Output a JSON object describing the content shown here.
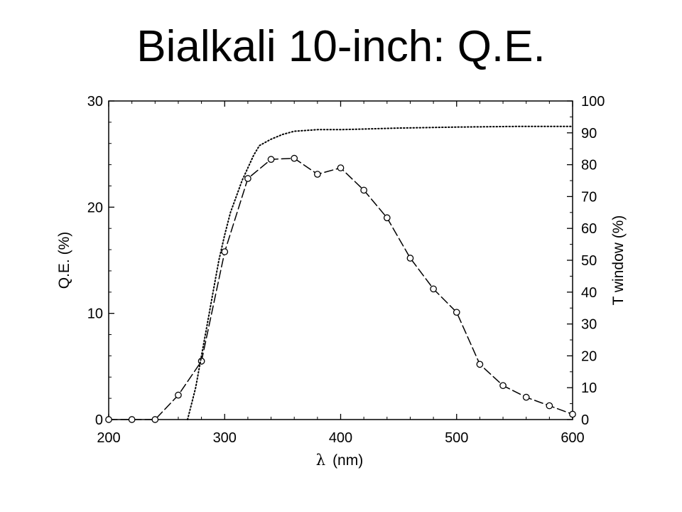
{
  "page": {
    "title": "Bialkali 10-inch: Q.E."
  },
  "chart_data": {
    "type": "line",
    "title": "Bialkali 10-inch: Q.E.",
    "xlabel_symbol": "λ",
    "xlabel_unit": "(nm)",
    "ylabel": "Q.E. (%)",
    "y2label": "T window (%)",
    "xlim": [
      200,
      600
    ],
    "ylim": [
      0,
      30
    ],
    "y2lim": [
      0,
      100
    ],
    "xticks": [
      200,
      300,
      400,
      500,
      600
    ],
    "yticks": [
      0,
      10,
      20,
      30
    ],
    "y2ticks": [
      0,
      10,
      20,
      30,
      40,
      50,
      60,
      70,
      80,
      90,
      100
    ],
    "grid": false,
    "series": [
      {
        "axis": "left",
        "line": "dashed",
        "marker": "open-circle",
        "x": [
          200,
          220,
          240,
          260,
          280,
          300,
          320,
          340,
          360,
          380,
          400,
          420,
          440,
          460,
          480,
          500,
          520,
          540,
          560,
          580,
          600
        ],
        "y": [
          0,
          0,
          0,
          2.3,
          5.5,
          15.8,
          22.7,
          24.5,
          24.6,
          23.1,
          23.7,
          21.6,
          19.0,
          15.2,
          12.3,
          10.1,
          5.2,
          3.2,
          2.1,
          1.3,
          0.5
        ]
      },
      {
        "axis": "right",
        "line": "dotted",
        "marker": "none",
        "x": [
          268,
          275,
          280,
          285,
          290,
          295,
          300,
          305,
          310,
          315,
          320,
          325,
          330,
          340,
          350,
          360,
          380,
          400,
          450,
          500,
          550,
          600
        ],
        "y": [
          0,
          10,
          20,
          30,
          40,
          50,
          58,
          65,
          70,
          75,
          79,
          83,
          86,
          88,
          89.5,
          90.5,
          91,
          91,
          91.5,
          91.8,
          92,
          92
        ]
      }
    ]
  }
}
